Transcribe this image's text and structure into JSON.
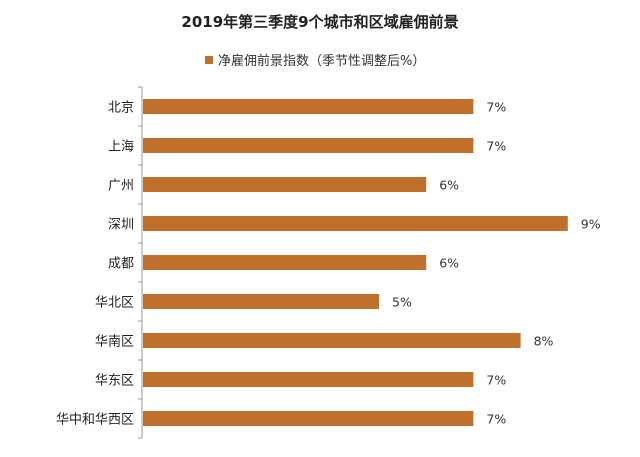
{
  "chart_data": {
    "type": "bar",
    "orientation": "horizontal",
    "title": "2019年第三季度9个城市和区域雇佣前景",
    "categories": [
      "北京",
      "上海",
      "广州",
      "深圳",
      "成都",
      "华北区",
      "华南区",
      "华东区",
      "华中和华西区"
    ],
    "series": [
      {
        "name": "净雇佣前景指数（季节性调整后%）",
        "values": [
          7,
          7,
          6,
          9,
          6,
          5,
          8,
          7,
          7
        ],
        "color": "#C0702A"
      }
    ],
    "value_labels": [
      "7%",
      "7%",
      "6%",
      "9%",
      "6%",
      "5%",
      "8%",
      "7%",
      "7%"
    ],
    "xlim": [
      0,
      10
    ],
    "grid": false,
    "legend_position": "top"
  }
}
